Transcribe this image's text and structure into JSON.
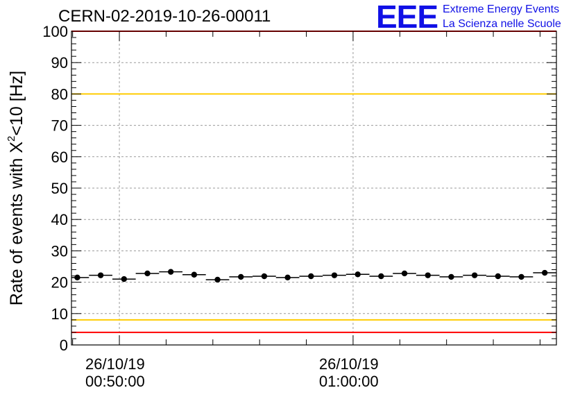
{
  "header": {
    "run_title": "CERN-02-2019-10-26-00011"
  },
  "logo": {
    "mark": "EEE",
    "line1": "Extreme Energy Events",
    "line2": "La Scienza nelle Scuole"
  },
  "chart_data": {
    "type": "scatter",
    "title": "CERN-02-2019-10-26-00011",
    "ylabel": "Rate of events with X²<10 [Hz]",
    "ylabel_main": "Rate of events with X",
    "ylabel_sup": "2",
    "ylabel_tail": "<10 [Hz]",
    "xlabel": "",
    "ylim": [
      0,
      100
    ],
    "yticks": [
      0,
      10,
      20,
      30,
      40,
      50,
      60,
      70,
      80,
      90,
      100
    ],
    "xlim_minutes": [
      -2.05,
      18.7
    ],
    "xtick_labels": [
      {
        "minute": 0,
        "date": "26/10/19",
        "time": "00:50:00"
      },
      {
        "minute": 10,
        "date": "26/10/19",
        "time": "01:00:00"
      }
    ],
    "grid": true,
    "bin_halfwidth_minutes": 0.5,
    "x_minutes": [
      -1.8,
      -0.8,
      0.2,
      1.2,
      2.2,
      3.2,
      4.2,
      5.2,
      6.2,
      7.2,
      8.2,
      9.2,
      10.2,
      11.2,
      12.2,
      13.2,
      14.2,
      15.2,
      16.2,
      17.2,
      18.2
    ],
    "values": [
      21.5,
      22.2,
      21.0,
      22.8,
      23.3,
      22.4,
      20.8,
      21.7,
      21.9,
      21.5,
      21.9,
      22.2,
      22.5,
      21.9,
      22.8,
      22.2,
      21.7,
      22.2,
      21.9,
      21.7,
      23.0
    ],
    "reference_lines": [
      {
        "y": 100,
        "color": "#ff0000"
      },
      {
        "y": 80,
        "color": "#ffcc00"
      },
      {
        "y": 8,
        "color": "#ffcc00"
      },
      {
        "y": 4,
        "color": "#ff0000"
      }
    ],
    "marker_color": "#000000"
  }
}
